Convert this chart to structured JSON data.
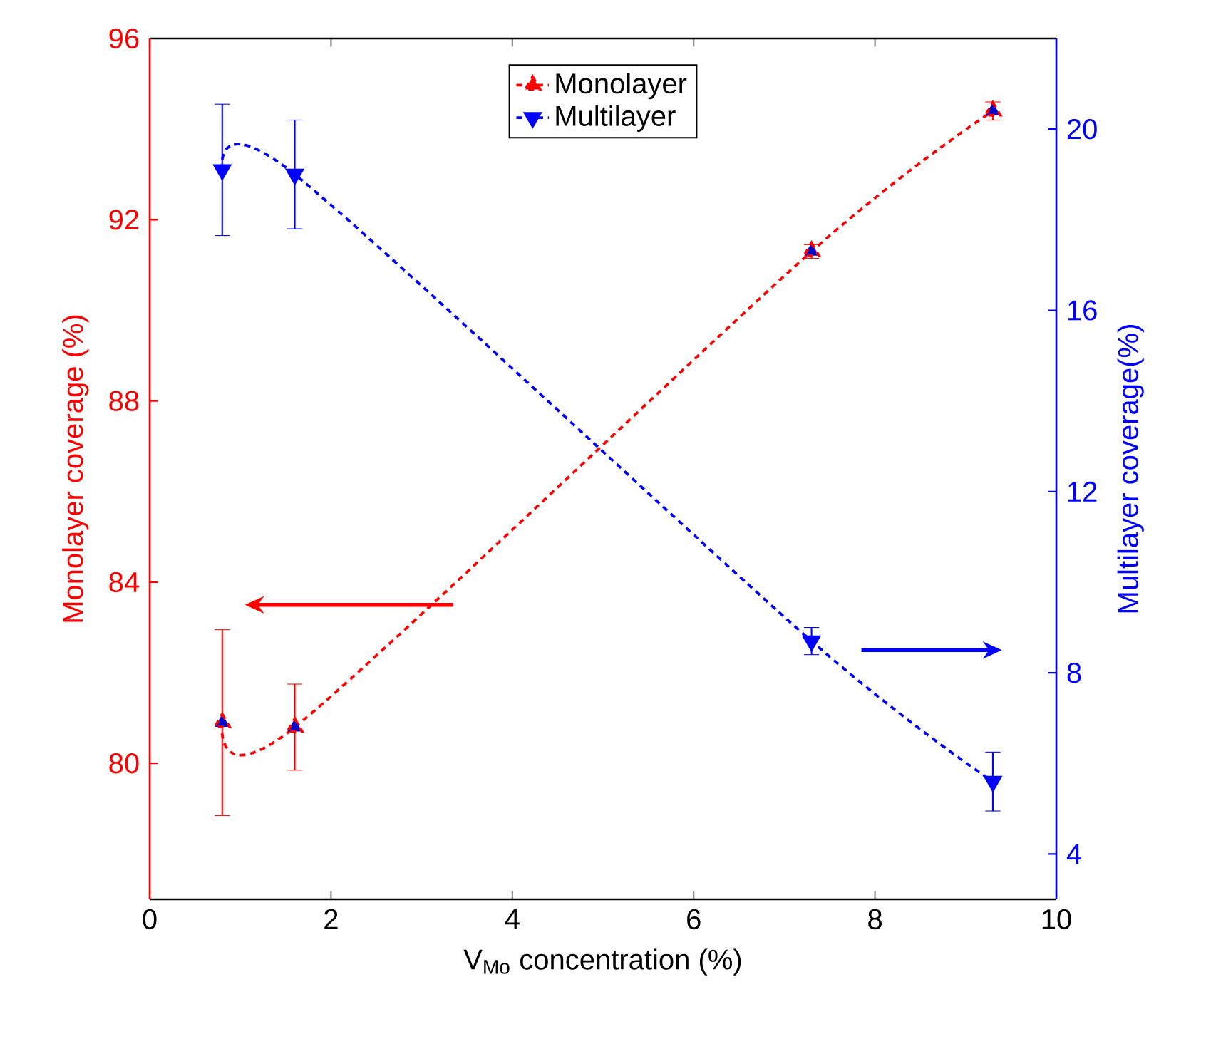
{
  "chart_data": {
    "type": "line",
    "xlabel": "V$_{Mo}$ concentration (%)",
    "ylabel": "Monolayer coverage (%)",
    "y2label": "Multilayer coverage(%)",
    "x": [
      0.8,
      1.6,
      7.3,
      9.3
    ],
    "series": [
      {
        "name": "Monolayer",
        "color": "#ff0000",
        "marker": "triangle",
        "values": [
          80.9,
          80.8,
          91.3,
          94.4
        ],
        "errors": [
          2.05,
          0.95,
          0.15,
          0.2
        ]
      },
      {
        "name": "Multilayer",
        "color": "#0000ff",
        "marker": "triangle-down",
        "axis": "y2",
        "values": [
          19.1,
          19.0,
          8.7,
          5.6
        ],
        "errors": [
          1.45,
          1.2,
          0.3,
          0.65
        ]
      }
    ],
    "line_style": "dashed",
    "legend": "top",
    "xlim": [
      0,
      10
    ],
    "xticks": [
      0,
      2,
      4,
      6,
      8,
      10
    ],
    "ylim": [
      77,
      96
    ],
    "yticks": [
      80,
      84,
      88,
      92,
      96
    ],
    "y2lim": [
      3,
      22
    ],
    "y2ticks": [
      4,
      8,
      12,
      16,
      20
    ]
  }
}
